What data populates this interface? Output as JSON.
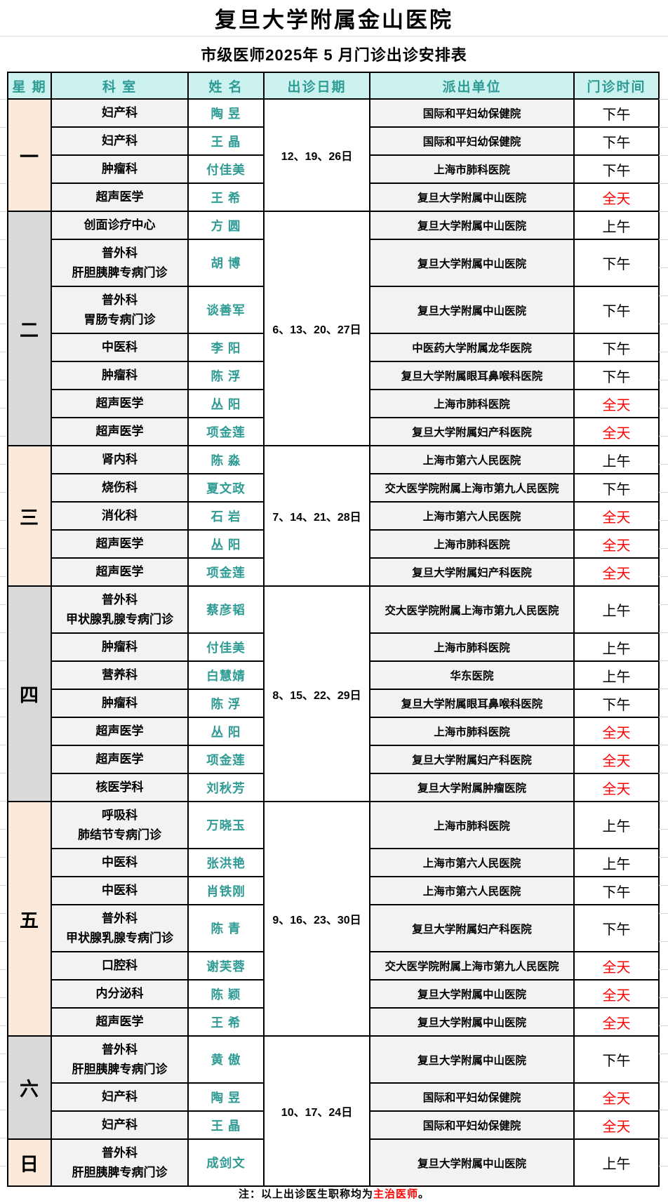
{
  "title": "复旦大学附属金山医院",
  "subtitle": "市级医师2025年 5 月门诊出诊安排表",
  "columns": [
    "星 期",
    "科 室",
    "姓 名",
    "出诊日期",
    "派出单位",
    "门诊时间"
  ],
  "footer": {
    "prefix": "注：以上出诊医生职称均为",
    "highlight": "主治医师",
    "suffix": "。"
  },
  "colors": {
    "accent_teal": "#2E9B94",
    "header_bg": "#CCF2F0",
    "day_peach": "#FDE9D9",
    "day_gray": "#D9D9D9",
    "cell_gray": "#F2F2F2",
    "alert_red": "#FF0000"
  },
  "days": [
    {
      "label": "一",
      "shade": "peach",
      "date": "12、19、26日",
      "date_spans_next_day": false,
      "rows": [
        {
          "dept": [
            "妇产科"
          ],
          "name": "陶 昱",
          "unit": "国际和平妇幼保健院",
          "time": "下午",
          "tall": false
        },
        {
          "dept": [
            "妇产科"
          ],
          "name": "王 晶",
          "unit": "国际和平妇幼保健院",
          "time": "下午",
          "tall": false
        },
        {
          "dept": [
            "肿瘤科"
          ],
          "name": "付佳美",
          "unit": "上海市肺科医院",
          "time": "下午",
          "tall": false
        },
        {
          "dept": [
            "超声医学"
          ],
          "name": "王 希",
          "unit": "复旦大学附属中山医院",
          "time": "全天",
          "tall": false
        }
      ]
    },
    {
      "label": "二",
      "shade": "gray",
      "date": "6、13、20、27日",
      "date_spans_next_day": false,
      "rows": [
        {
          "dept": [
            "创面诊疗中心"
          ],
          "name": "方 圆",
          "unit": "复旦大学附属中山医院",
          "time": "上午",
          "tall": false
        },
        {
          "dept": [
            "普外科",
            "肝胆胰脾专病门诊"
          ],
          "name": "胡 博",
          "unit": "复旦大学附属中山医院",
          "time": "下午",
          "tall": true
        },
        {
          "dept": [
            "普外科",
            "胃肠专病门诊"
          ],
          "name": "谈善军",
          "unit": "复旦大学附属中山医院",
          "time": "下午",
          "tall": true
        },
        {
          "dept": [
            "中医科"
          ],
          "name": "李 阳",
          "unit": "中医药大学附属龙华医院",
          "time": "下午",
          "tall": false
        },
        {
          "dept": [
            "肿瘤科"
          ],
          "name": "陈 浮",
          "unit": "复旦大学附属眼耳鼻喉科医院",
          "time": "下午",
          "tall": false
        },
        {
          "dept": [
            "超声医学"
          ],
          "name": "丛 阳",
          "unit": "上海市肺科医院",
          "time": "全天",
          "tall": false
        },
        {
          "dept": [
            "超声医学"
          ],
          "name": "项金莲",
          "unit": "复旦大学附属妇产科医院",
          "time": "全天",
          "tall": false
        }
      ]
    },
    {
      "label": "三",
      "shade": "peach",
      "date": "7、14、21、28日",
      "date_spans_next_day": false,
      "rows": [
        {
          "dept": [
            "肾内科"
          ],
          "name": "陈 淼",
          "unit": "上海市第六人民医院",
          "time": "上午",
          "tall": false
        },
        {
          "dept": [
            "烧伤科"
          ],
          "name": "夏文政",
          "unit": "交大医学院附属上海市第九人民医院",
          "time": "下午",
          "tall": false
        },
        {
          "dept": [
            "消化科"
          ],
          "name": "石 岩",
          "unit": "上海市第六人民医院",
          "time": "全天",
          "tall": false
        },
        {
          "dept": [
            "超声医学"
          ],
          "name": "丛 阳",
          "unit": "上海市肺科医院",
          "time": "全天",
          "tall": false
        },
        {
          "dept": [
            "超声医学"
          ],
          "name": "项金莲",
          "unit": "复旦大学附属妇产科医院",
          "time": "全天",
          "tall": false
        }
      ]
    },
    {
      "label": "四",
      "shade": "gray",
      "date": "8、15、22、29日",
      "date_spans_next_day": false,
      "rows": [
        {
          "dept": [
            "普外科",
            "甲状腺乳腺专病门诊"
          ],
          "name": "蔡彦韬",
          "unit": "交大医学院附属上海市第九人民医院",
          "time": "上午",
          "tall": true
        },
        {
          "dept": [
            "肿瘤科"
          ],
          "name": "付佳美",
          "unit": "上海市肺科医院",
          "time": "上午",
          "tall": false
        },
        {
          "dept": [
            "营养科"
          ],
          "name": "白慧婧",
          "unit": "华东医院",
          "time": "上午",
          "tall": false
        },
        {
          "dept": [
            "肿瘤科"
          ],
          "name": "陈 浮",
          "unit": "复旦大学附属眼耳鼻喉科医院",
          "time": "下午",
          "tall": false
        },
        {
          "dept": [
            "超声医学"
          ],
          "name": "丛 阳",
          "unit": "上海市肺科医院",
          "time": "全天",
          "tall": false
        },
        {
          "dept": [
            "超声医学"
          ],
          "name": "项金莲",
          "unit": "复旦大学附属妇产科医院",
          "time": "全天",
          "tall": false
        },
        {
          "dept": [
            "核医学科"
          ],
          "name": "刘秋芳",
          "unit": "复旦大学附属肿瘤医院",
          "time": "全天",
          "tall": false
        }
      ]
    },
    {
      "label": "五",
      "shade": "peach",
      "date": "9、16、23、30日",
      "date_spans_next_day": false,
      "rows": [
        {
          "dept": [
            "呼吸科",
            "肺结节专病门诊"
          ],
          "name": "万晓玉",
          "unit": "上海市肺科医院",
          "time": "上午",
          "tall": true
        },
        {
          "dept": [
            "中医科"
          ],
          "name": "张洪艳",
          "unit": "上海市第六人民医院",
          "time": "上午",
          "tall": false
        },
        {
          "dept": [
            "中医科"
          ],
          "name": "肖铁刚",
          "unit": "上海市第六人民医院",
          "time": "下午",
          "tall": false
        },
        {
          "dept": [
            "普外科",
            "甲状腺乳腺专病门诊"
          ],
          "name": "陈 青",
          "unit": "复旦大学附属妇产科医院",
          "time": "下午",
          "tall": true
        },
        {
          "dept": [
            "口腔科"
          ],
          "name": "谢芙蓉",
          "unit": "交大医学院附属上海市第九人民医院",
          "time": "全天",
          "tall": false
        },
        {
          "dept": [
            "内分泌科"
          ],
          "name": "陈 颖",
          "unit": "复旦大学附属中山医院",
          "time": "全天",
          "tall": false
        },
        {
          "dept": [
            "超声医学"
          ],
          "name": "王 希",
          "unit": "复旦大学附属中山医院",
          "time": "全天",
          "tall": false
        }
      ]
    },
    {
      "label": "六",
      "shade": "gray",
      "date": "10、17、24日",
      "date_spans_next_day": true,
      "rows": [
        {
          "dept": [
            "普外科",
            "肝胆胰脾专病门诊"
          ],
          "name": "黄 傲",
          "unit": "复旦大学附属中山医院",
          "time": "下午",
          "tall": true
        },
        {
          "dept": [
            "妇产科"
          ],
          "name": "陶 昱",
          "unit": "国际和平妇幼保健院",
          "time": "全天",
          "tall": false
        },
        {
          "dept": [
            "妇产科"
          ],
          "name": "王 晶",
          "unit": "国际和平妇幼保健院",
          "time": "全天",
          "tall": false
        }
      ]
    },
    {
      "label": "日",
      "shade": "peach",
      "date": null,
      "date_spans_next_day": false,
      "rows": [
        {
          "dept": [
            "普外科",
            "肝胆胰脾专病门诊"
          ],
          "name": "成剑文",
          "unit": "复旦大学附属中山医院",
          "time": "上午",
          "tall": true
        }
      ]
    }
  ]
}
